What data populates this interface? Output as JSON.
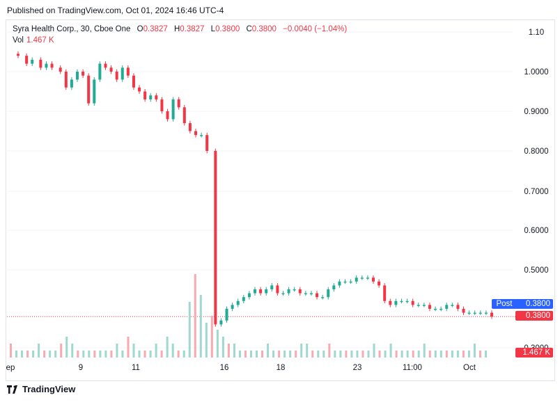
{
  "published": "Published on TradingView.com, Oct 01, 2024 16:46 UTC-4",
  "legend": {
    "symbol": "Syra Health Corp., 30, Cboe One",
    "open_label": "O",
    "open": "0.3827",
    "high_label": "H",
    "high": "0.3827",
    "low_label": "L",
    "low": "0.3800",
    "close_label": "C",
    "close": "0.3800",
    "change": "−0.0040 (−1.04%)"
  },
  "vol": {
    "label": "Vol",
    "value": "1.467 K"
  },
  "badges": {
    "post_label": "Post",
    "post_value": "0.3800",
    "last_value": "0.3800",
    "vol_value": "1.467 K"
  },
  "footer": {
    "brand": "TradingView"
  },
  "colors": {
    "up": "#22ab94",
    "down": "#f23645",
    "up_vol": "#9fd8cd",
    "down_vol": "#f9a9b0",
    "post": "#2962ff",
    "grid": "#f0f3fa",
    "axis_text": "#131722"
  },
  "chart_data": {
    "type": "candlestick",
    "y_ticks": [
      "1.10",
      "1.0000",
      "0.9000",
      "0.8000",
      "0.7000",
      "0.6000",
      "0.5000",
      "0.3000"
    ],
    "ylim": [
      0.3,
      1.1
    ],
    "x_ticks": [
      "ep",
      "9",
      "11",
      "16",
      "18",
      "23",
      "11:00",
      "Oct"
    ],
    "price_line": 0.38,
    "close_path": [
      [
        0,
        1.04
      ],
      [
        3,
        1.02
      ],
      [
        5,
        1.03
      ],
      [
        8,
        1.01
      ],
      [
        10,
        1.02
      ],
      [
        12,
        1.01
      ],
      [
        15,
        1.0
      ],
      [
        17,
        0.96
      ],
      [
        19,
        0.98
      ],
      [
        21,
        1.0
      ],
      [
        23,
        0.99
      ],
      [
        25,
        0.92
      ],
      [
        27,
        0.98
      ],
      [
        29,
        1.02
      ],
      [
        31,
        1.01
      ],
      [
        33,
        1.0
      ],
      [
        35,
        0.98
      ],
      [
        37,
        1.01
      ],
      [
        39,
        0.99
      ],
      [
        41,
        0.96
      ],
      [
        43,
        0.95
      ],
      [
        45,
        0.93
      ],
      [
        47,
        0.94
      ],
      [
        49,
        0.93
      ],
      [
        51,
        0.9
      ],
      [
        53,
        0.88
      ],
      [
        55,
        0.93
      ],
      [
        57,
        0.91
      ],
      [
        59,
        0.87
      ],
      [
        61,
        0.85
      ],
      [
        63,
        0.84
      ],
      [
        65,
        0.84
      ],
      [
        67,
        0.8
      ],
      [
        70,
        0.36
      ],
      [
        72,
        0.37
      ],
      [
        74,
        0.4
      ],
      [
        76,
        0.41
      ],
      [
        78,
        0.42
      ],
      [
        80,
        0.43
      ],
      [
        82,
        0.44
      ],
      [
        84,
        0.45
      ],
      [
        86,
        0.44
      ],
      [
        88,
        0.45
      ],
      [
        90,
        0.46
      ],
      [
        92,
        0.44
      ],
      [
        94,
        0.44
      ],
      [
        96,
        0.45
      ],
      [
        98,
        0.45
      ],
      [
        100,
        0.44
      ],
      [
        102,
        0.44
      ],
      [
        104,
        0.44
      ],
      [
        106,
        0.43
      ],
      [
        108,
        0.43
      ],
      [
        110,
        0.45
      ],
      [
        112,
        0.46
      ],
      [
        114,
        0.47
      ],
      [
        116,
        0.47
      ],
      [
        118,
        0.47
      ],
      [
        120,
        0.48
      ],
      [
        122,
        0.48
      ],
      [
        124,
        0.48
      ],
      [
        126,
        0.47
      ],
      [
        128,
        0.46
      ],
      [
        130,
        0.42
      ],
      [
        132,
        0.41
      ],
      [
        134,
        0.42
      ],
      [
        136,
        0.42
      ],
      [
        138,
        0.42
      ],
      [
        140,
        0.41
      ],
      [
        142,
        0.41
      ],
      [
        144,
        0.41
      ],
      [
        146,
        0.4
      ],
      [
        148,
        0.4
      ],
      [
        150,
        0.4
      ],
      [
        152,
        0.41
      ],
      [
        154,
        0.41
      ],
      [
        156,
        0.4
      ],
      [
        158,
        0.39
      ],
      [
        160,
        0.39
      ],
      [
        162,
        0.39
      ],
      [
        164,
        0.39
      ],
      [
        166,
        0.39
      ],
      [
        168,
        0.38
      ]
    ],
    "volume": [
      2,
      1,
      1,
      1,
      1,
      2,
      1,
      1,
      1,
      2,
      3,
      2,
      1,
      1,
      1,
      1,
      1,
      1,
      1,
      2,
      1,
      3,
      2,
      1,
      1,
      1,
      2,
      1,
      3,
      2,
      1,
      1,
      8,
      12,
      9,
      5,
      6,
      4,
      3,
      2,
      2,
      1,
      1,
      1,
      1,
      1,
      2,
      1,
      1,
      1,
      1,
      1,
      2,
      2,
      1,
      1,
      1,
      2,
      1,
      1,
      1,
      1,
      1,
      1,
      1,
      2,
      1,
      1,
      2,
      1,
      1,
      1,
      1,
      1,
      2,
      1,
      1,
      1,
      1,
      1,
      1,
      1,
      1,
      2,
      1,
      1
    ]
  }
}
